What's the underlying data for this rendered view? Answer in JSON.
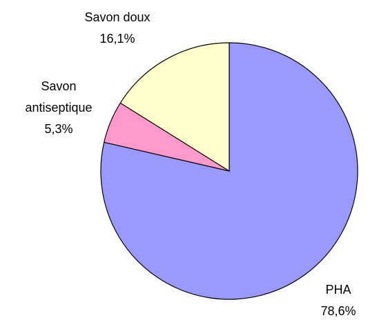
{
  "chart_data": {
    "type": "pie",
    "categories": [
      "PHA",
      "Savon antiseptique",
      "Savon doux"
    ],
    "values": [
      78.6,
      5.3,
      16.1
    ],
    "value_labels": [
      "78,6%",
      "5,3%",
      "16,1%"
    ],
    "colors": [
      "#9999ff",
      "#ff99cc",
      "#ffffcc"
    ]
  }
}
